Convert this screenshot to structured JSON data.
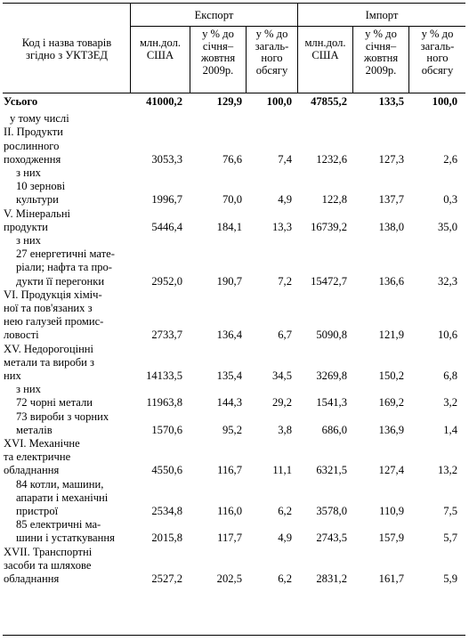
{
  "header": {
    "code_name": [
      "Код і назва товарів",
      "згідно з УКТЗЕД"
    ],
    "export": "Експорт",
    "import": "Імпорт",
    "columns": [
      [
        "млн.дол.",
        "США"
      ],
      [
        "у % до",
        "січня–",
        "жовтня",
        "2009р."
      ],
      [
        "у % до",
        "загаль-",
        "ного",
        "обсягу"
      ],
      [
        "млн.дол.",
        "США"
      ],
      [
        "у % до",
        "січня–",
        "жовтня",
        "2009р."
      ],
      [
        "у % до",
        "загаль-",
        "ного",
        "обсягу"
      ]
    ]
  },
  "rows": [
    {
      "label": [
        "Усього"
      ],
      "bold": true,
      "values": [
        "41000,2",
        "129,9",
        "100,0",
        "47855,2",
        "133,5",
        "100,0"
      ]
    },
    {
      "label": [
        "у тому числі"
      ],
      "indent": 1,
      "values": []
    },
    {
      "label": [
        "II. Продукти",
        "рослинного",
        "походження"
      ],
      "values": [
        "3053,3",
        "76,6",
        "7,4",
        "1232,6",
        "127,3",
        "2,6"
      ]
    },
    {
      "label": [
        "з них"
      ],
      "indent": 2,
      "values": []
    },
    {
      "label": [
        "10 зернові",
        "культури"
      ],
      "indent": 2,
      "values": [
        "1996,7",
        "70,0",
        "4,9",
        "122,8",
        "137,7",
        "0,3"
      ]
    },
    {
      "label": [
        "V. Мінеральні",
        "продукти"
      ],
      "values": [
        "5446,4",
        "184,1",
        "13,3",
        "16739,2",
        "138,0",
        "35,0"
      ]
    },
    {
      "label": [
        "з них"
      ],
      "indent": 2,
      "values": []
    },
    {
      "label": [
        "27 енергетичні мате-",
        "ріали; нафта та про-",
        "дукти її перегонки"
      ],
      "indent": 2,
      "values": [
        "2952,0",
        "190,7",
        "7,2",
        "15472,7",
        "136,6",
        "32,3"
      ]
    },
    {
      "label": [
        "VI. Продукція хіміч-",
        "ної та пов'язаних з",
        "нею галузей промис-",
        "ловості"
      ],
      "values": [
        "2733,7",
        "136,4",
        "6,7",
        "5090,8",
        "121,9",
        "10,6"
      ]
    },
    {
      "label": [
        "XV. Недорогоцінні",
        "метали та вироби з",
        "них"
      ],
      "values": [
        "14133,5",
        "135,4",
        "34,5",
        "3269,8",
        "150,2",
        "6,8"
      ]
    },
    {
      "label": [
        "з них"
      ],
      "indent": 2,
      "values": []
    },
    {
      "label": [
        "72 чорні метали"
      ],
      "indent": 2,
      "values": [
        "11963,8",
        "144,3",
        "29,2",
        "1541,3",
        "169,2",
        "3,2"
      ]
    },
    {
      "label": [
        "73 вироби з чорних",
        "металів"
      ],
      "indent": 2,
      "values": [
        "1570,6",
        "95,2",
        "3,8",
        "686,0",
        "136,9",
        "1,4"
      ]
    },
    {
      "label": [
        "XVI. Механічне",
        "та електричне",
        "обладнання"
      ],
      "values": [
        "4550,6",
        "116,7",
        "11,1",
        "6321,5",
        "127,4",
        "13,2"
      ]
    },
    {
      "label": [
        "84 котли, машини,",
        "апарати і механічні",
        "пристрої"
      ],
      "indent": 2,
      "values": [
        "2534,8",
        "116,0",
        "6,2",
        "3578,0",
        "110,9",
        "7,5"
      ]
    },
    {
      "label": [
        "85 електричні ма-",
        "шини і устаткування"
      ],
      "indent": 2,
      "values": [
        "2015,8",
        "117,7",
        "4,9",
        "2743,5",
        "157,9",
        "5,7"
      ]
    },
    {
      "label": [
        "XVII. Транспортні",
        "засоби та шляхове",
        "обладнання"
      ],
      "values": [
        "2527,2",
        "202,5",
        "6,2",
        "2831,2",
        "161,7",
        "5,9"
      ]
    }
  ]
}
